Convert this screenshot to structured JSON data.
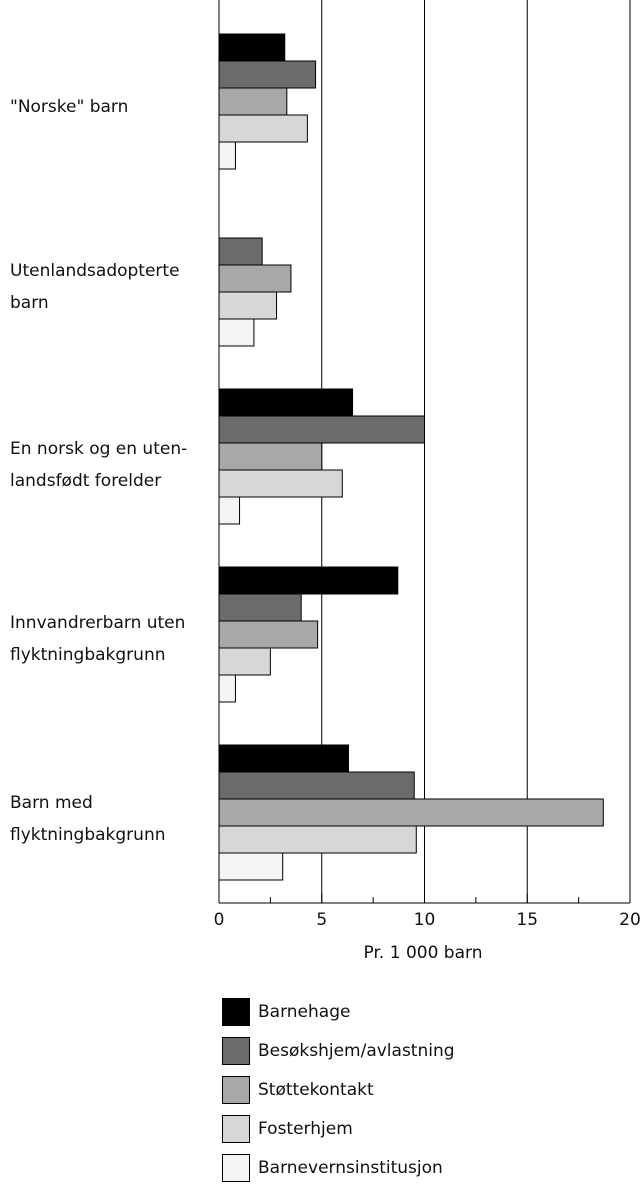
{
  "chart_data": {
    "type": "bar",
    "orientation": "horizontal",
    "categories": [
      [
        "\"Norske\" barn"
      ],
      [
        "Utenlandsadopterte",
        "barn"
      ],
      [
        "En norsk og en uten-",
        "landsfødt forelder"
      ],
      [
        "Innvandrerbarn uten",
        "flyktningbakgrunn"
      ],
      [
        "Barn med",
        "flyktningbakgrunn"
      ]
    ],
    "series": [
      {
        "name": "Barnehage",
        "color": "#000000",
        "values": [
          3.2,
          null,
          6.5,
          8.7,
          6.3
        ]
      },
      {
        "name": "Besøkshjem/avlastning",
        "color": "#6b6b6b",
        "values": [
          4.7,
          2.1,
          10.0,
          4.0,
          9.5
        ]
      },
      {
        "name": "Støttekontakt",
        "color": "#a8a8a8",
        "values": [
          3.3,
          3.5,
          5.0,
          4.8,
          18.7
        ]
      },
      {
        "name": "Fosterhjem",
        "color": "#d7d7d7",
        "values": [
          4.3,
          2.8,
          6.0,
          2.5,
          9.6
        ]
      },
      {
        "name": "Barnevernsinstitusjon",
        "color": "#f4f4f4",
        "values": [
          0.8,
          1.7,
          1.0,
          0.8,
          3.1
        ]
      }
    ],
    "xticks": [
      "0",
      "5",
      "10",
      "15",
      "20"
    ],
    "xlim": [
      0,
      20
    ],
    "xlabel": "Pr. 1 000 barn",
    "grid": "vertical lines at major ticks",
    "legend_position": "bottom"
  }
}
